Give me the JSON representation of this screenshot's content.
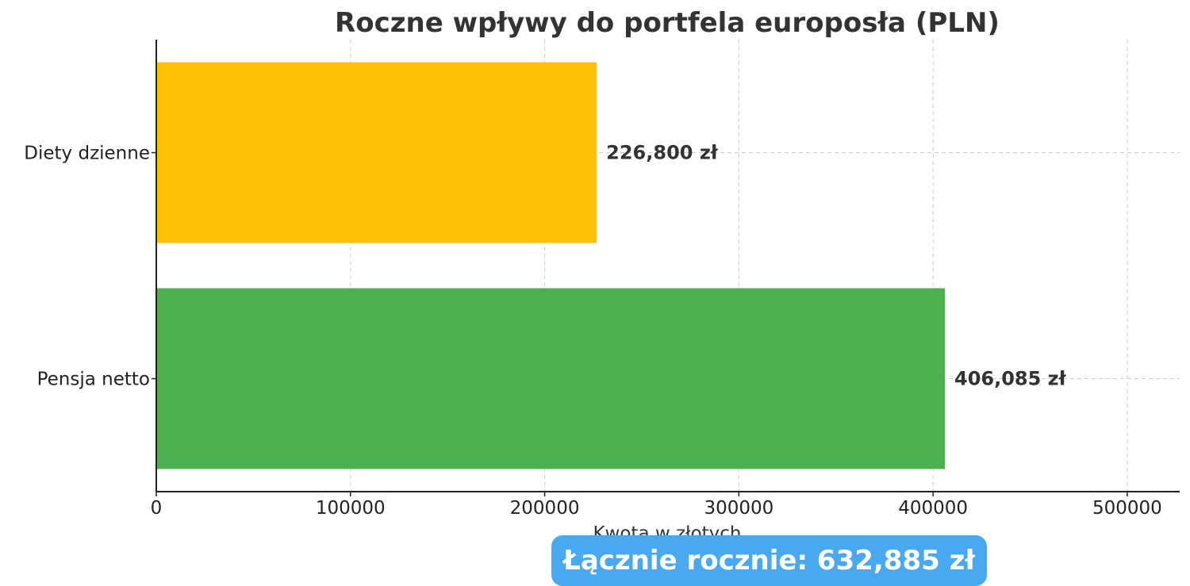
{
  "chart_data": {
    "type": "bar",
    "orientation": "horizontal",
    "title": "Roczne wpływy do portfela europosła (PLN)",
    "xlabel": "Kwota w złotych",
    "ylabel": "",
    "categories": [
      "Diety dzienne",
      "Pensja netto"
    ],
    "values": [
      226800,
      406085
    ],
    "value_labels": [
      "226,800 zł",
      "406,085 zł"
    ],
    "colors": [
      "#FFC107",
      "#4CAF50"
    ],
    "xlim": [
      0,
      527000
    ],
    "xticks": [
      0,
      100000,
      200000,
      300000,
      400000,
      500000
    ],
    "xtick_labels": [
      "0",
      "100000",
      "200000",
      "300000",
      "400000",
      "500000"
    ],
    "grid": true,
    "grid_style": "dashed"
  },
  "summary": {
    "total_label": "Łącznie rocznie: 632,885 zł",
    "background": "#4AA8F0"
  }
}
